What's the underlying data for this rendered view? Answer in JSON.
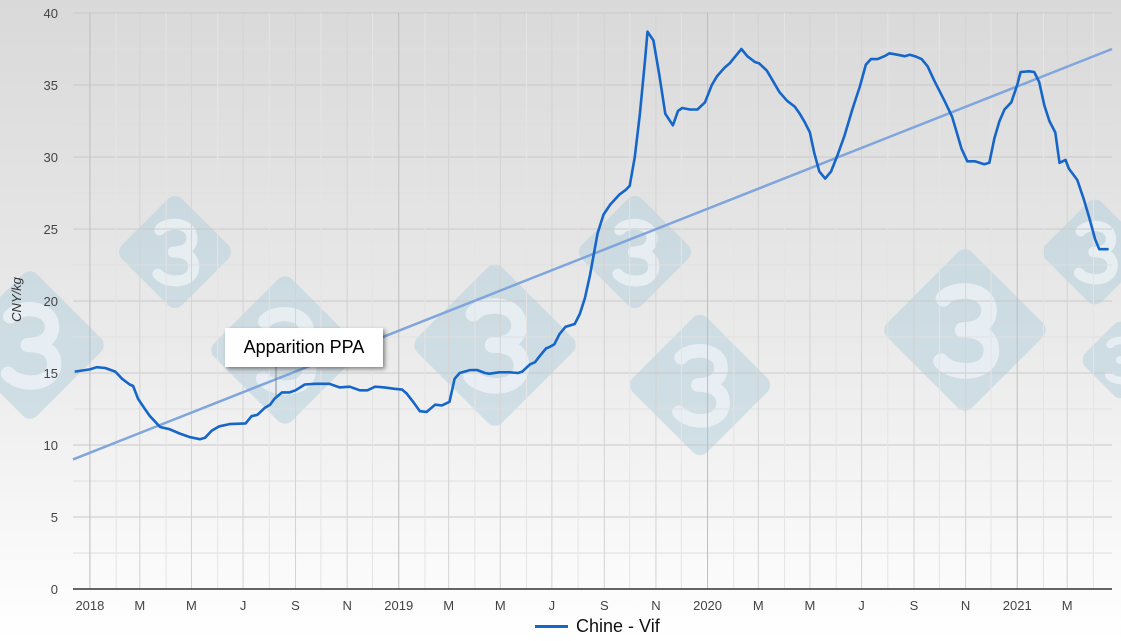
{
  "chart_data": {
    "type": "line",
    "title": "",
    "xlabel": "",
    "ylabel": "CNY/kg",
    "ylim": [
      0,
      40
    ],
    "yticks": [
      0,
      5,
      10,
      15,
      20,
      25,
      30,
      35,
      40
    ],
    "xlim": [
      "2017-12-12",
      "2021-04-23"
    ],
    "xticks": [
      {
        "date": "2018-01-01",
        "label": "2018"
      },
      {
        "date": "2018-03-01",
        "label": "M"
      },
      {
        "date": "2018-05-01",
        "label": "M"
      },
      {
        "date": "2018-07-01",
        "label": "J"
      },
      {
        "date": "2018-09-01",
        "label": "S"
      },
      {
        "date": "2018-11-01",
        "label": "N"
      },
      {
        "date": "2019-01-01",
        "label": "2019"
      },
      {
        "date": "2019-03-01",
        "label": "M"
      },
      {
        "date": "2019-05-01",
        "label": "M"
      },
      {
        "date": "2019-07-01",
        "label": "J"
      },
      {
        "date": "2019-09-01",
        "label": "S"
      },
      {
        "date": "2019-11-01",
        "label": "N"
      },
      {
        "date": "2020-01-01",
        "label": "2020"
      },
      {
        "date": "2020-03-01",
        "label": "M"
      },
      {
        "date": "2020-05-01",
        "label": "M"
      },
      {
        "date": "2020-07-01",
        "label": "J"
      },
      {
        "date": "2020-09-01",
        "label": "S"
      },
      {
        "date": "2020-11-01",
        "label": "N"
      },
      {
        "date": "2021-01-01",
        "label": "2021"
      },
      {
        "date": "2021-03-01",
        "label": "M"
      }
    ],
    "grid": true,
    "legend_position": "bottom",
    "series": [
      {
        "name": "Chine - Vif",
        "color": "#1566c8",
        "points": [
          [
            "2017-12-14",
            15.1
          ],
          [
            "2018-01-01",
            15.25
          ],
          [
            "2018-01-09",
            15.4
          ],
          [
            "2018-01-19",
            15.35
          ],
          [
            "2018-01-31",
            15.1
          ],
          [
            "2018-02-08",
            14.6
          ],
          [
            "2018-02-17",
            14.2
          ],
          [
            "2018-02-21",
            14.1
          ],
          [
            "2018-02-27",
            13.2
          ],
          [
            "2018-03-07",
            12.5
          ],
          [
            "2018-03-13",
            12.0
          ],
          [
            "2018-03-25",
            11.25
          ],
          [
            "2018-04-05",
            11.1
          ],
          [
            "2018-04-17",
            10.8
          ],
          [
            "2018-04-29",
            10.55
          ],
          [
            "2018-05-11",
            10.4
          ],
          [
            "2018-05-17",
            10.5
          ],
          [
            "2018-05-25",
            11.0
          ],
          [
            "2018-06-03",
            11.3
          ],
          [
            "2018-06-15",
            11.45
          ],
          [
            "2018-07-04",
            11.5
          ],
          [
            "2018-07-11",
            12.0
          ],
          [
            "2018-07-18",
            12.1
          ],
          [
            "2018-07-27",
            12.6
          ],
          [
            "2018-08-02",
            12.8
          ],
          [
            "2018-08-07",
            13.2
          ],
          [
            "2018-08-16",
            13.65
          ],
          [
            "2018-08-25",
            13.65
          ],
          [
            "2018-09-01",
            13.8
          ],
          [
            "2018-09-12",
            14.2
          ],
          [
            "2018-09-24",
            14.25
          ],
          [
            "2018-10-11",
            14.25
          ],
          [
            "2018-10-23",
            14.0
          ],
          [
            "2018-11-04",
            14.05
          ],
          [
            "2018-11-16",
            13.8
          ],
          [
            "2018-11-25",
            13.8
          ],
          [
            "2018-12-04",
            14.05
          ],
          [
            "2018-12-15",
            14.0
          ],
          [
            "2018-12-27",
            13.9
          ],
          [
            "2019-01-05",
            13.85
          ],
          [
            "2019-01-10",
            13.6
          ],
          [
            "2019-01-18",
            13.0
          ],
          [
            "2019-01-26",
            12.35
          ],
          [
            "2019-02-03",
            12.3
          ],
          [
            "2019-02-13",
            12.8
          ],
          [
            "2019-02-21",
            12.75
          ],
          [
            "2019-03-02",
            13.0
          ],
          [
            "2019-03-08",
            14.6
          ],
          [
            "2019-03-14",
            15.0
          ],
          [
            "2019-03-26",
            15.2
          ],
          [
            "2019-04-04",
            15.2
          ],
          [
            "2019-04-13",
            15.0
          ],
          [
            "2019-04-18",
            14.95
          ],
          [
            "2019-04-30",
            15.05
          ],
          [
            "2019-05-12",
            15.05
          ],
          [
            "2019-05-22",
            15.0
          ],
          [
            "2019-05-27",
            15.1
          ],
          [
            "2019-06-05",
            15.6
          ],
          [
            "2019-06-11",
            15.75
          ],
          [
            "2019-06-17",
            16.2
          ],
          [
            "2019-06-24",
            16.7
          ],
          [
            "2019-06-28",
            16.8
          ],
          [
            "2019-07-04",
            17.0
          ],
          [
            "2019-07-10",
            17.7
          ],
          [
            "2019-07-17",
            18.2
          ],
          [
            "2019-07-28",
            18.4
          ],
          [
            "2019-08-03",
            19.1
          ],
          [
            "2019-08-09",
            20.2
          ],
          [
            "2019-08-15",
            21.8
          ],
          [
            "2019-08-24",
            24.7
          ],
          [
            "2019-08-31",
            26.0
          ],
          [
            "2019-09-08",
            26.7
          ],
          [
            "2019-09-19",
            27.4
          ],
          [
            "2019-09-26",
            27.7
          ],
          [
            "2019-10-01",
            28.0
          ],
          [
            "2019-10-07",
            30.0
          ],
          [
            "2019-10-13",
            33.0
          ],
          [
            "2019-10-19",
            36.7
          ],
          [
            "2019-10-22",
            38.7
          ],
          [
            "2019-10-29",
            38.1
          ],
          [
            "2019-11-05",
            35.7
          ],
          [
            "2019-11-12",
            33.0
          ],
          [
            "2019-11-21",
            32.2
          ],
          [
            "2019-11-27",
            33.2
          ],
          [
            "2019-12-02",
            33.4
          ],
          [
            "2019-12-11",
            33.3
          ],
          [
            "2019-12-20",
            33.3
          ],
          [
            "2019-12-29",
            33.8
          ],
          [
            "2020-01-06",
            35.0
          ],
          [
            "2020-01-12",
            35.6
          ],
          [
            "2020-01-21",
            36.2
          ],
          [
            "2020-01-27",
            36.5
          ],
          [
            "2020-02-03",
            37.0
          ],
          [
            "2020-02-10",
            37.5
          ],
          [
            "2020-02-17",
            37.0
          ],
          [
            "2020-02-26",
            36.6
          ],
          [
            "2020-03-02",
            36.5
          ],
          [
            "2020-03-11",
            36.0
          ],
          [
            "2020-03-17",
            35.4
          ],
          [
            "2020-03-26",
            34.5
          ],
          [
            "2020-04-04",
            33.9
          ],
          [
            "2020-04-13",
            33.5
          ],
          [
            "2020-04-19",
            33.0
          ],
          [
            "2020-04-25",
            32.4
          ],
          [
            "2020-05-01",
            31.7
          ],
          [
            "2020-05-06",
            30.3
          ],
          [
            "2020-05-12",
            29.0
          ],
          [
            "2020-05-19",
            28.5
          ],
          [
            "2020-05-26",
            29.0
          ],
          [
            "2020-06-03",
            30.2
          ],
          [
            "2020-06-11",
            31.5
          ],
          [
            "2020-06-20",
            33.3
          ],
          [
            "2020-06-29",
            34.9
          ],
          [
            "2020-07-06",
            36.4
          ],
          [
            "2020-07-12",
            36.8
          ],
          [
            "2020-07-20",
            36.8
          ],
          [
            "2020-07-28",
            37.0
          ],
          [
            "2020-08-03",
            37.2
          ],
          [
            "2020-08-13",
            37.1
          ],
          [
            "2020-08-21",
            37.0
          ],
          [
            "2020-08-27",
            37.1
          ],
          [
            "2020-09-02",
            37.0
          ],
          [
            "2020-09-10",
            36.8
          ],
          [
            "2020-09-17",
            36.3
          ],
          [
            "2020-09-25",
            35.3
          ],
          [
            "2020-10-07",
            33.9
          ],
          [
            "2020-10-16",
            32.8
          ],
          [
            "2020-10-22",
            31.6
          ],
          [
            "2020-10-27",
            30.6
          ],
          [
            "2020-11-03",
            29.7
          ],
          [
            "2020-11-12",
            29.7
          ],
          [
            "2020-11-23",
            29.5
          ],
          [
            "2020-11-29",
            29.6
          ],
          [
            "2020-12-05",
            31.3
          ],
          [
            "2020-12-11",
            32.5
          ],
          [
            "2020-12-17",
            33.3
          ],
          [
            "2020-12-25",
            33.8
          ],
          [
            "2021-01-01",
            35.0
          ],
          [
            "2021-01-05",
            35.9
          ],
          [
            "2021-01-15",
            35.95
          ],
          [
            "2021-01-21",
            35.9
          ],
          [
            "2021-01-27",
            35.2
          ],
          [
            "2021-02-02",
            33.6
          ],
          [
            "2021-02-08",
            32.5
          ],
          [
            "2021-02-15",
            31.7
          ],
          [
            "2021-02-20",
            29.6
          ],
          [
            "2021-02-27",
            29.8
          ],
          [
            "2021-03-03",
            29.2
          ],
          [
            "2021-03-13",
            28.4
          ],
          [
            "2021-03-21",
            27.0
          ],
          [
            "2021-03-27",
            25.8
          ],
          [
            "2021-04-03",
            24.3
          ],
          [
            "2021-04-08",
            23.6
          ],
          [
            "2021-04-19",
            23.6
          ]
        ]
      }
    ],
    "trendline": {
      "color": "#7fa6dc",
      "points": [
        [
          "2017-12-12",
          9.0
        ],
        [
          "2021-04-23",
          37.5
        ]
      ]
    },
    "annotations": [
      {
        "text": "Apparition PPA",
        "date": "2018-08-10",
        "value": 13.5
      }
    ]
  }
}
